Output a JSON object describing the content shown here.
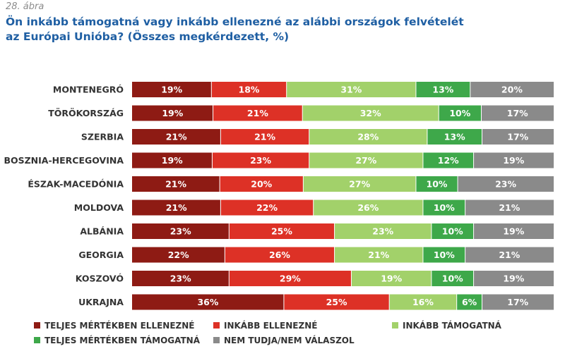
{
  "figure_label": "28. ábra",
  "title_line1": "Ön inkább támogatná vagy inkább ellenezné az alábbi országok felvételét",
  "title_line2": "az Európai Unióba? (Összes megkérdezett, %)",
  "chart_data": {
    "type": "bar",
    "orientation": "horizontal",
    "stacked": true,
    "xlim": [
      0,
      100
    ],
    "grid": false,
    "legend_position": "bottom",
    "categories": [
      "MONTENEGRÓ",
      "TÖRÖKORSZÁG",
      "SZERBIA",
      "BOSZNIA-HERCEGOVINA",
      "ÉSZAK-MACEDÓNIA",
      "MOLDOVA",
      "ALBÁNIA",
      "GEORGIA",
      "KOSZOVÓ",
      "UKRAJNA"
    ],
    "series": [
      {
        "name": "TELJES MÉRTÉKBEN ELLENEZNÉ",
        "color": "#8e1b14",
        "values": [
          19,
          19,
          21,
          19,
          21,
          21,
          23,
          22,
          23,
          36
        ]
      },
      {
        "name": "INKÁBB ELLENEZNÉ",
        "color": "#dd3126",
        "values": [
          18,
          21,
          21,
          23,
          20,
          22,
          25,
          26,
          29,
          25
        ]
      },
      {
        "name": "INKÁBB TÁMOGATNÁ",
        "color": "#a2d16a",
        "values": [
          31,
          32,
          28,
          27,
          27,
          26,
          23,
          21,
          19,
          16
        ]
      },
      {
        "name": "TELJES MÉRTÉKBEN TÁMOGATNÁ",
        "color": "#3ea84a",
        "values": [
          13,
          10,
          13,
          12,
          10,
          10,
          10,
          10,
          10,
          6
        ]
      },
      {
        "name": "NEM TUDJA/NEM VÁLASZOL",
        "color": "#8a8a8a",
        "values": [
          20,
          17,
          17,
          19,
          23,
          21,
          19,
          21,
          19,
          17
        ]
      }
    ]
  }
}
